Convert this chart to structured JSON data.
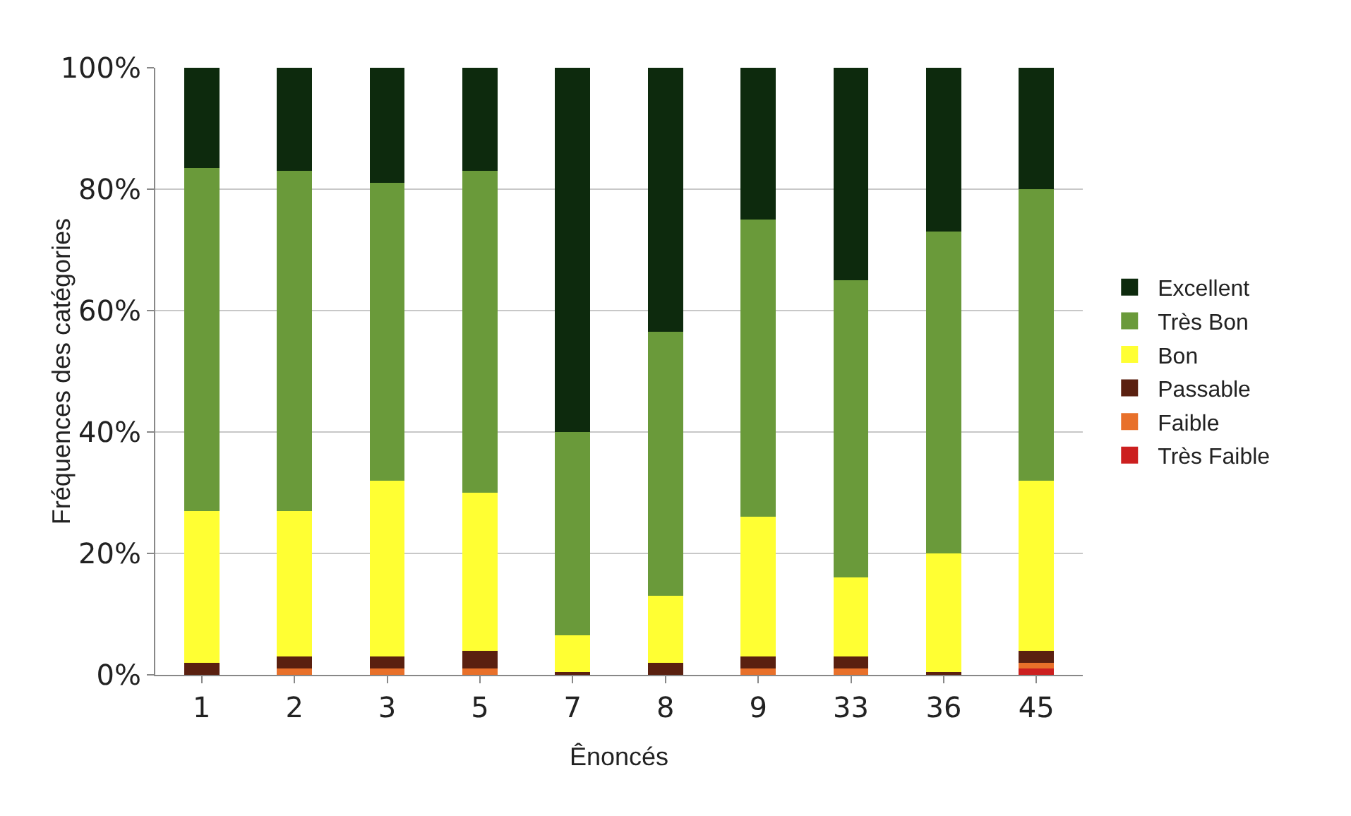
{
  "chart_data": {
    "type": "bar",
    "stacked": true,
    "xlabel": "Ênoncés",
    "ylabel": "Fréquences des catégories",
    "categories": [
      "1",
      "2",
      "3",
      "5",
      "7",
      "8",
      "9",
      "33",
      "36",
      "45"
    ],
    "series": [
      {
        "name": "Très Faible",
        "color": "#cc1f1f",
        "values": [
          0,
          0,
          0,
          0,
          0,
          0,
          0,
          0,
          0,
          1
        ]
      },
      {
        "name": "Faible",
        "color": "#e8702a",
        "values": [
          0,
          1,
          1,
          1,
          0,
          0,
          1,
          1,
          0,
          1
        ]
      },
      {
        "name": "Passable",
        "color": "#5a2010",
        "values": [
          2,
          2,
          2,
          3,
          0.5,
          2,
          2,
          2,
          0.5,
          2
        ]
      },
      {
        "name": "Bon",
        "color": "#ffff33",
        "values": [
          25,
          24,
          29,
          26,
          6,
          11,
          23,
          13,
          19.5,
          28
        ]
      },
      {
        "name": "Très Bon",
        "color": "#6a9a3a",
        "values": [
          56.5,
          56,
          49,
          53,
          33.5,
          43.5,
          49,
          49,
          53,
          48
        ]
      },
      {
        "name": "Excellent",
        "color": "#0d2a0d",
        "values": [
          16.5,
          17,
          19,
          17,
          60,
          43.5,
          25,
          35,
          27,
          20
        ]
      }
    ],
    "ylim": [
      0,
      100
    ],
    "yticks": [
      {
        "value": 0,
        "label": "0%"
      },
      {
        "value": 20,
        "label": "20%"
      },
      {
        "value": 40,
        "label": "40%"
      },
      {
        "value": 60,
        "label": "60%"
      },
      {
        "value": 80,
        "label": "80%"
      },
      {
        "value": 100,
        "label": "100%"
      }
    ],
    "grid": "y",
    "legend": "right"
  }
}
